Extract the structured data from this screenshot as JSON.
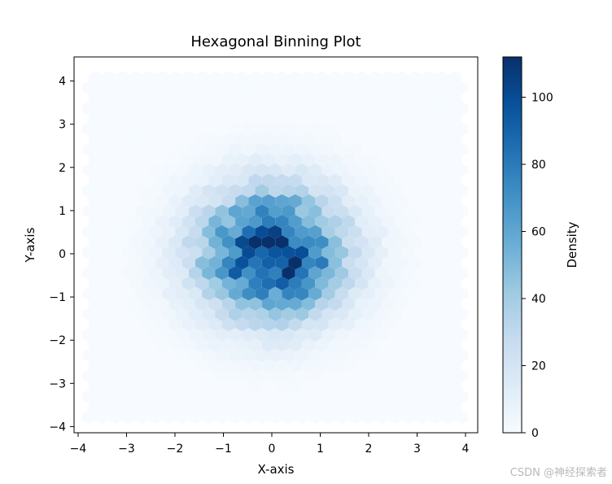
{
  "chart_data": {
    "type": "hexbin",
    "title": "Hexagonal Binning Plot",
    "xlabel": "X-axis",
    "ylabel": "Y-axis",
    "xlim": [
      -4.1,
      4.25
    ],
    "ylim": [
      -4.1,
      4.6
    ],
    "x_ticks": [
      -4,
      -3,
      -2,
      -1,
      0,
      1,
      2,
      3,
      4
    ],
    "y_ticks": [
      -4,
      -3,
      -2,
      -1,
      0,
      1,
      2,
      3,
      4
    ],
    "x_tick_labels": [
      "−4",
      "−3",
      "−2",
      "−1",
      "0",
      "1",
      "2",
      "3",
      "4"
    ],
    "y_tick_labels": [
      "−4",
      "−3",
      "−2",
      "−1",
      "0",
      "1",
      "2",
      "3",
      "4"
    ],
    "colormap": "Blues",
    "colorbar": {
      "label": "Density",
      "range": [
        0,
        112
      ],
      "ticks": [
        0,
        20,
        40,
        60,
        80,
        100
      ],
      "tick_labels": [
        "0",
        "20",
        "40",
        "60",
        "80",
        "100"
      ]
    },
    "distribution": "bivariate normal, mean (0,0), std ≈ 1",
    "peak_density": 112,
    "peak_location": [
      0,
      0
    ],
    "grid_on": false,
    "legend": "none (colorbar right)"
  },
  "watermark": "CSDN @神经探索者"
}
